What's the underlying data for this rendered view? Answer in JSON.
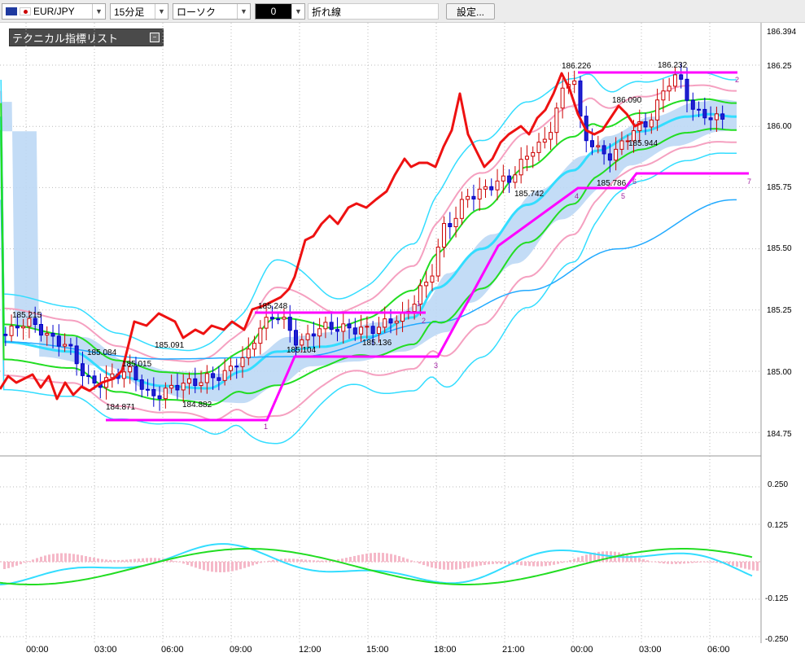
{
  "toolbar": {
    "symbol": "EUR/JPY",
    "timeframe": "15分足",
    "chart_type": "ローソク",
    "overlay_value": "0",
    "overlay_line": "折れ線",
    "settings_label": "設定..."
  },
  "indicator_panel": {
    "title": "テクニカル指標リスト"
  },
  "price_axis": {
    "ticks": [
      "186.394",
      "186.25",
      "186.00",
      "185.75",
      "185.50",
      "185.25",
      "185.00",
      "184.75"
    ]
  },
  "macd_axis": {
    "ticks": [
      "0.250",
      "0.125",
      "-0.125",
      "-0.250"
    ]
  },
  "time_axis": {
    "ticks": [
      "00:00",
      "03:00",
      "06:00",
      "09:00",
      "12:00",
      "15:00",
      "18:00",
      "21:00",
      "00:00",
      "03:00",
      "06:00"
    ]
  },
  "price_labels": [
    "185.215",
    "185.084",
    "185.015",
    "185.091",
    "184.871",
    "184.882",
    "185.248",
    "185.104",
    "185.136",
    "185.742",
    "186.226",
    "186.090",
    "185.944",
    "185.786",
    "186.232"
  ],
  "zigzag_counts": [
    "1",
    "2",
    "3",
    "1",
    "2",
    "4",
    "5",
    "6",
    "7",
    "2"
  ],
  "colors": {
    "accent": "#ff00ff",
    "red_line": "#ee1111",
    "bollinger": "#33ddff",
    "envelope": "#f5a0c0",
    "ma": "#22dd22",
    "cloud": "#bcd8f5",
    "macd_hist": "#f5b8c8"
  },
  "chart_data": {
    "type": "line",
    "xlim": [
      "00:00",
      "07:00"
    ],
    "ylim": [
      184.68,
      186.394
    ],
    "key_points": [
      {
        "t": "00:00",
        "v": 185.215
      },
      {
        "t": "03:00",
        "v": 184.871
      },
      {
        "t": "05:30",
        "v": 184.882
      },
      {
        "t": "11:00",
        "v": 185.248
      },
      {
        "t": "11:45",
        "v": 185.104
      },
      {
        "t": "15:00",
        "v": 185.136
      },
      {
        "t": "21:15",
        "v": 185.742
      },
      {
        "t": "00:00",
        "v": 186.226
      },
      {
        "t": "01:30",
        "v": 185.786
      },
      {
        "t": "02:30",
        "v": 186.09
      },
      {
        "t": "03:00",
        "v": 185.944
      },
      {
        "t": "04:45",
        "v": 186.232
      }
    ],
    "zigzag": [
      184.871,
      185.248,
      185.104,
      185.786,
      186.226
    ],
    "macd_ylim": [
      -0.25,
      0.25
    ]
  }
}
